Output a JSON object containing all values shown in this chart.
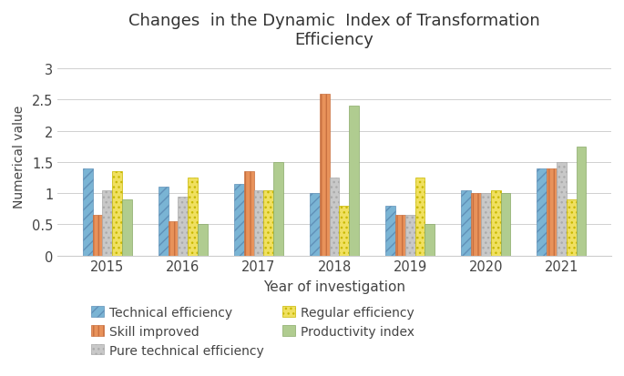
{
  "title_line1": "Changes  in the Dynamic  Index of Transformation",
  "title_line2": "Efficiency",
  "xlabel": "Year of investigation",
  "ylabel": "Numerical value",
  "years": [
    "2015",
    "2016",
    "2017",
    "2018",
    "2019",
    "2020",
    "2021"
  ],
  "series_names": [
    "Technical efficiency",
    "Skill improved",
    "Pure technical efficiency",
    "Regular efficiency",
    "Productivity index"
  ],
  "series_values": [
    [
      1.4,
      1.1,
      1.15,
      1.0,
      0.8,
      1.05,
      1.4
    ],
    [
      0.65,
      0.55,
      1.35,
      2.6,
      0.65,
      1.0,
      1.4
    ],
    [
      1.05,
      0.95,
      1.05,
      1.25,
      0.65,
      1.0,
      1.5
    ],
    [
      1.35,
      1.25,
      1.05,
      0.8,
      1.25,
      1.05,
      0.9
    ],
    [
      0.9,
      0.5,
      1.5,
      2.4,
      0.5,
      1.0,
      1.75
    ]
  ],
  "bar_facecolors": [
    "#7ab4d4",
    "#e8925a",
    "#c8c8c8",
    "#f0e060",
    "#b0cc90"
  ],
  "bar_hatches": [
    "///",
    "|||",
    "...",
    "...",
    ""
  ],
  "bar_edgecolors": [
    "#6090b8",
    "#c87040",
    "#aaaaaa",
    "#c8b800",
    "#88aa68"
  ],
  "ylim": [
    0,
    3.2
  ],
  "yticks": [
    0,
    0.5,
    1.0,
    1.5,
    2.0,
    2.5,
    3.0
  ],
  "bar_width": 0.13,
  "fig_width": 6.85,
  "fig_height": 4.14,
  "dpi": 100,
  "legend_layout": [
    [
      "Technical efficiency",
      "Skill improved"
    ],
    [
      "Pure technical efficiency",
      "Regular efficiency"
    ],
    [
      "Productivity index"
    ]
  ]
}
